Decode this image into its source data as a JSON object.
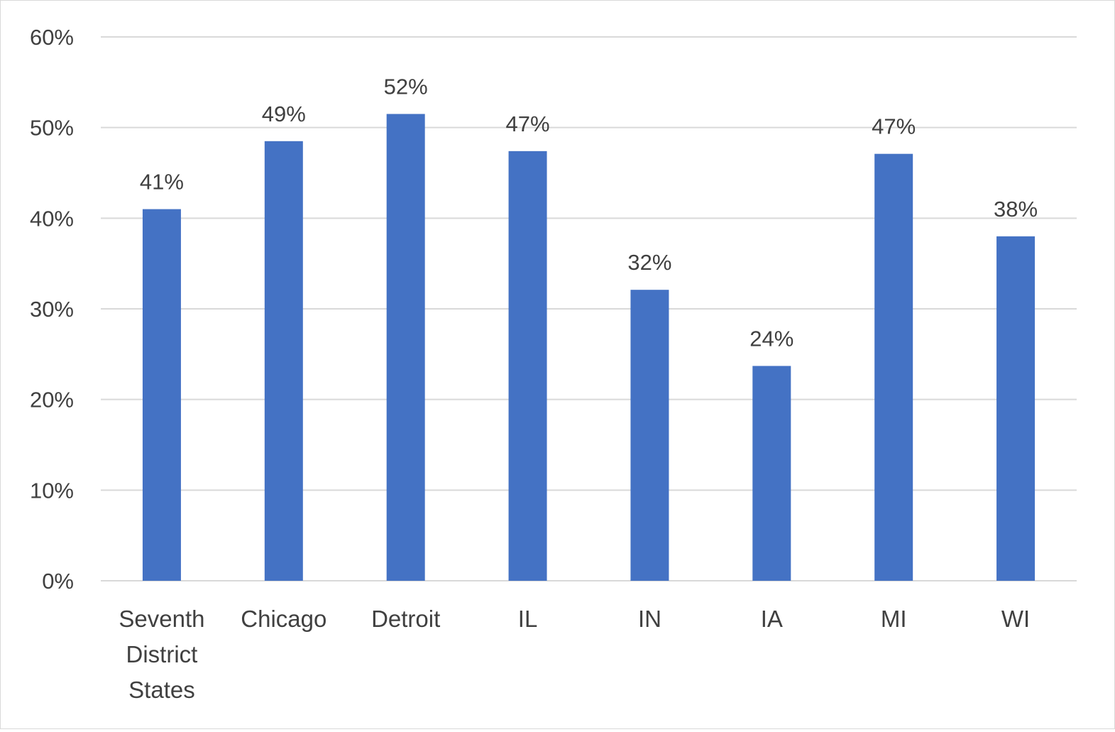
{
  "chart_data": {
    "type": "bar",
    "title": "",
    "xlabel": "",
    "ylabel": "",
    "categories": [
      [
        "Seventh",
        "District",
        "States"
      ],
      [
        "Chicago"
      ],
      [
        "Detroit"
      ],
      [
        "IL"
      ],
      [
        "IN"
      ],
      [
        "IA"
      ],
      [
        "MI"
      ],
      [
        "WI"
      ]
    ],
    "values": [
      41,
      48.5,
      51.5,
      47.4,
      32.1,
      23.7,
      47.1,
      38
    ],
    "data_labels": [
      "41%",
      "49%",
      "52%",
      "47%",
      "32%",
      "24%",
      "47%",
      "38%"
    ],
    "ylim": [
      0,
      60
    ],
    "yticks": [
      0,
      10,
      20,
      30,
      40,
      50,
      60
    ],
    "ytick_labels": [
      "0%",
      "10%",
      "20%",
      "30%",
      "40%",
      "50%",
      "60%"
    ],
    "grid": true,
    "legend": "none",
    "bar_color": "#4472C4",
    "grid_color": "#d9d9d9",
    "text_color": "#404040"
  }
}
